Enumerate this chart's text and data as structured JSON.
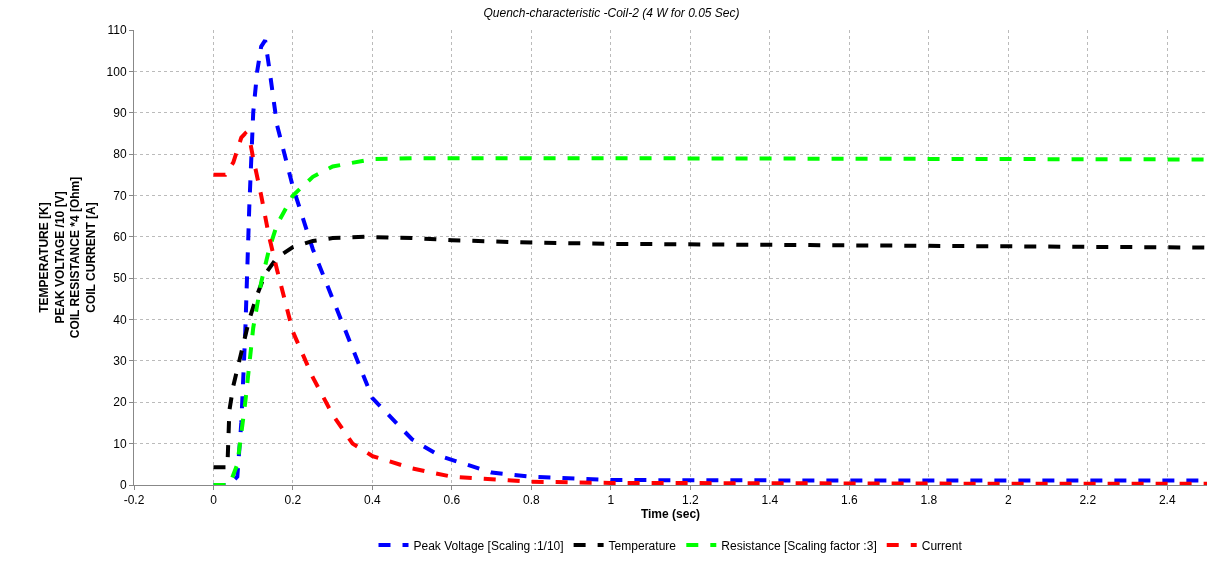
{
  "chart_data": {
    "type": "line",
    "title": "Quench-characteristic -Coil-2 (4 W for 0.05 Sec)",
    "xlabel": "Time (sec)",
    "ylabel": "TEMPERATURE [K]\nPEAK VOLTAGE /10 [V]\nCOIL RESISTANCE *4 [Ohm]\nCOIL CURRENT [A]",
    "xlim": [
      -0.2,
      2.5
    ],
    "xticks": [
      -0.2,
      0,
      0.2,
      0.4,
      0.6,
      0.8,
      1,
      1.2,
      1.4,
      1.6,
      1.8,
      2,
      2.2,
      2.4
    ],
    "ylim": [
      0,
      110
    ],
    "yticks": [
      0,
      10,
      20,
      30,
      40,
      50,
      60,
      70,
      80,
      90,
      100,
      110
    ],
    "grid": true,
    "legend": "bottom",
    "line_style": "dashed",
    "marker": "none",
    "series": [
      {
        "name": "Peak Voltage [Scaling :1/10]",
        "color": "#0000ff",
        "x": [
          0,
          0.04,
          0.06,
          0.07,
          0.08,
          0.09,
          0.1,
          0.11,
          0.12,
          0.13,
          0.14,
          0.16,
          0.2,
          0.25,
          0.3,
          0.4,
          0.5,
          0.57,
          0.7,
          0.8,
          1,
          1.5,
          2,
          2.5
        ],
        "values": [
          0,
          0,
          2,
          15,
          37,
          67,
          90,
          100,
          106,
          107.5,
          101,
          87,
          72,
          57,
          45,
          21,
          11,
          7,
          3,
          2,
          1.2,
          1.1,
          1.1,
          1.1
        ]
      },
      {
        "name": "Temperature",
        "color": "#000000",
        "x": [
          0,
          0.035,
          0.04,
          0.05,
          0.07,
          0.09,
          0.11,
          0.13,
          0.16,
          0.2,
          0.25,
          0.3,
          0.38,
          0.5,
          0.6,
          0.8,
          1,
          1.5,
          2,
          2.5
        ],
        "values": [
          4.3,
          4.3,
          18,
          24,
          32,
          40,
          46,
          51,
          55,
          57.5,
          59,
          59.7,
          60,
          59.7,
          59.2,
          58.6,
          58.3,
          58,
          57.7,
          57.4
        ]
      },
      {
        "name": "Resistance [Scaling factor :3]",
        "color": "#00ff00",
        "x": [
          0,
          0.04,
          0.06,
          0.08,
          0.1,
          0.12,
          0.14,
          0.16,
          0.2,
          0.25,
          0.3,
          0.4,
          0.5,
          1,
          1.5,
          2,
          2.5
        ],
        "values": [
          0,
          0,
          5,
          20,
          38,
          49,
          57,
          63,
          70,
          74.5,
          77,
          78.8,
          79,
          79,
          78.9,
          78.8,
          78.7
        ]
      },
      {
        "name": "Current",
        "color": "#ff0000",
        "x": [
          0,
          0.03,
          0.05,
          0.07,
          0.08,
          0.09,
          0.1,
          0.12,
          0.14,
          0.16,
          0.2,
          0.25,
          0.3,
          0.35,
          0.4,
          0.5,
          0.6,
          0.8,
          1,
          1.5,
          2,
          2.5
        ],
        "values": [
          75,
          75,
          78,
          84,
          85,
          84,
          79,
          70,
          60,
          52,
          37,
          26,
          17,
          10,
          7,
          4,
          2,
          0.8,
          0.5,
          0.4,
          0.3,
          0.3
        ]
      }
    ]
  }
}
